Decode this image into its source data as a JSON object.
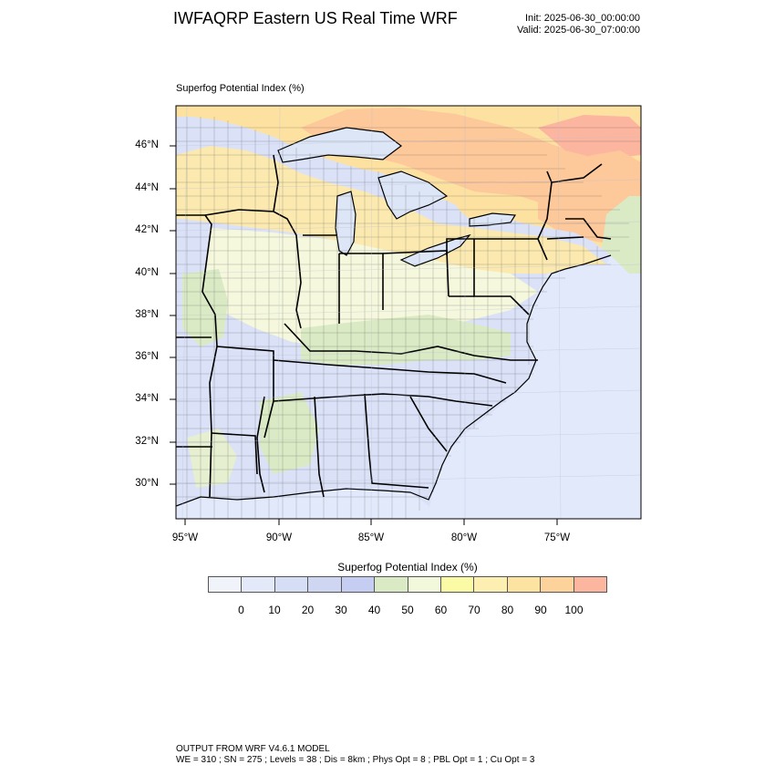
{
  "header": {
    "title": "IWFAQRP Eastern US Real Time WRF",
    "init": "Init: 2025-06-30_00:00:00",
    "valid": "Valid: 2025-06-30_07:00:00"
  },
  "map": {
    "field_label": "Superfog Potential Index   (%)",
    "lat_labels": [
      "46°N",
      "44°N",
      "42°N",
      "40°N",
      "38°N",
      "36°N",
      "34°N",
      "32°N",
      "30°N"
    ],
    "lon_labels": [
      "95°W",
      "90°W",
      "85°W",
      "80°W",
      "75°W"
    ],
    "colors": {
      "ocean": "#e2e9fb",
      "lake": "#dde6f7",
      "border": "#000000"
    }
  },
  "colorbar": {
    "title": "Superfog Potential Index  (%)",
    "ticks": [
      "0",
      "10",
      "20",
      "30",
      "40",
      "50",
      "60",
      "70",
      "80",
      "90",
      "100"
    ],
    "colors": [
      "#f0f3fa",
      "#e3e9f8",
      "#d6def5",
      "#cfd6f2",
      "#c6cdf2",
      "#d9eac4",
      "#f2f8dc",
      "#fbfba6",
      "#fdeeb1",
      "#fde3a1",
      "#fdd29b",
      "#fcb6a0"
    ]
  },
  "footer": {
    "line1": "OUTPUT FROM WRF V4.6.1 MODEL",
    "line2": "WE = 310 ; SN = 275 ; Levels = 38 ; Dis = 8km ; Phys Opt = 8 ; PBL Opt = 1 ; Cu Opt = 3"
  }
}
